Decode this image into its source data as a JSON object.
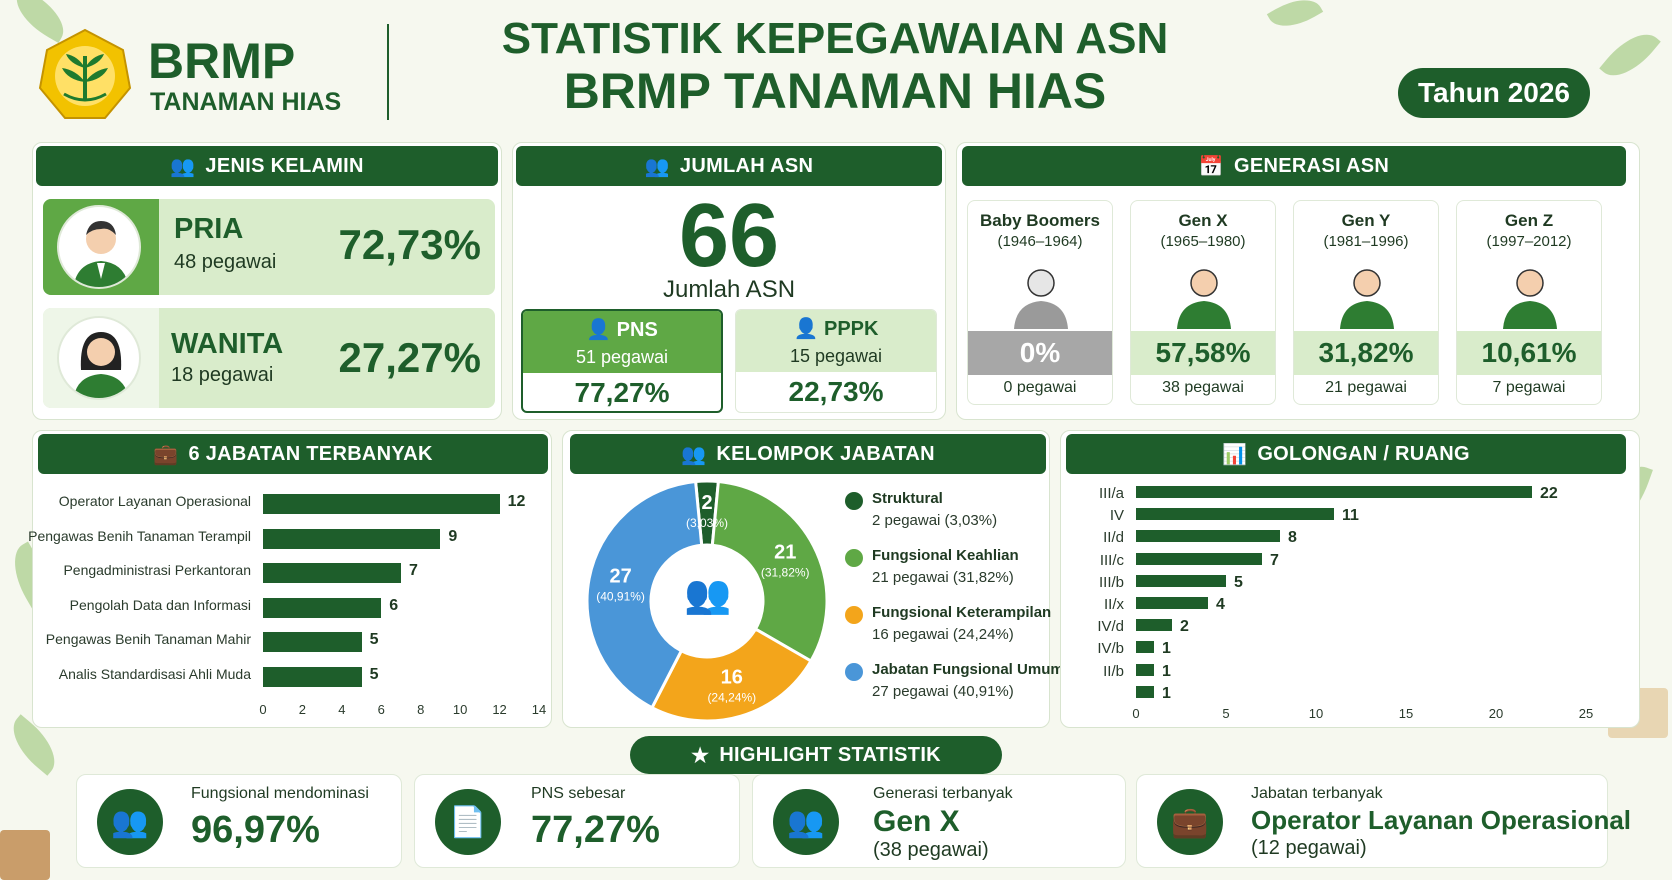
{
  "brand": {
    "logo_title": "BRMP",
    "logo_subtitle": "TANAMAN HIAS"
  },
  "header": {
    "title_line1": "STATISTIK KEPEGAWAIAN ASN",
    "title_line2": "BRMP TANAMAN HIAS",
    "year_badge": "Tahun 2026"
  },
  "colors": {
    "primary": "#1e5e2b",
    "light_green": "#d9eccb",
    "mid_green": "#5fa845",
    "orange": "#f3a51b",
    "blue": "#4a96d8",
    "grey": "#a7a7a7"
  },
  "gender": {
    "title": "JENIS KELAMIN",
    "icon": "people-icon",
    "items": [
      {
        "label": "PRIA",
        "count": "48 pegawai",
        "pct": "72,73%"
      },
      {
        "label": "WANITA",
        "count": "18 pegawai",
        "pct": "27,27%"
      }
    ]
  },
  "total": {
    "title": "JUMLAH ASN",
    "icon": "people-icon",
    "value": "66",
    "caption": "Jumlah ASN",
    "pns": {
      "label": "PNS",
      "count": "51 pegawai",
      "pct": "77,27%"
    },
    "pppk": {
      "label": "PPPK",
      "count": "15 pegawai",
      "pct": "22,73%"
    }
  },
  "generation": {
    "title": "GENERASI ASN",
    "icon": "calendar-icon",
    "items": [
      {
        "name": "Baby Boomers",
        "range": "(1946–1964)",
        "pct": "0%",
        "count": "0 pegawai"
      },
      {
        "name": "Gen X",
        "range": "(1965–1980)",
        "pct": "57,58%",
        "count": "38 pegawai"
      },
      {
        "name": "Gen Y",
        "range": "(1981–1996)",
        "pct": "31,82%",
        "count": "21 pegawai"
      },
      {
        "name": "Gen Z",
        "range": "(1997–2012)",
        "pct": "10,61%",
        "count": "7 pegawai"
      }
    ]
  },
  "jobs": {
    "title": "6 JABATAN TERBANYAK",
    "icon": "briefcase-icon"
  },
  "groups": {
    "title": "KELOMPOK JABATAN",
    "icon": "people-icon"
  },
  "ranks": {
    "title": "GOLONGAN / RUANG",
    "icon": "bar-chart-icon"
  },
  "chart_data": [
    {
      "type": "bar",
      "orientation": "horizontal",
      "categories": [
        "Operator Layanan Operasional",
        "Pengawas Benih Tanaman Terampil",
        "Pengadministrasi Perkantoran",
        "Pengolah Data dan Informasi",
        "Pengawas Benih Tanaman Mahir",
        "Analis Standardisasi Ahli Muda"
      ],
      "values": [
        12,
        9,
        7,
        6,
        5,
        5
      ],
      "xlim": [
        0,
        14
      ],
      "xticks": [
        "0",
        "2",
        "4",
        "6",
        "8",
        "10",
        "12",
        "14"
      ],
      "color": "#1e5e2b"
    },
    {
      "type": "pie",
      "donut": true,
      "slices": [
        {
          "name": "Struktural",
          "value": 2,
          "label": "2",
          "pct": "(3,03%)",
          "legend_detail": "2 pegawai (3,03%)",
          "color": "#1e5e2b"
        },
        {
          "name": "Fungsional Keahlian",
          "value": 21,
          "label": "21",
          "pct": "(31,82%)",
          "legend_detail": "21 pegawai (31,82%)",
          "color": "#5fa845"
        },
        {
          "name": "Fungsional Keterampilan",
          "value": 16,
          "label": "16",
          "pct": "(24,24%)",
          "legend_detail": "16 pegawai (24,24%)",
          "color": "#f3a51b"
        },
        {
          "name": "Jabatan Fungsional Umum",
          "value": 27,
          "label": "27",
          "pct": "(40,91%)",
          "legend_detail": "27 pegawai (40,91%)",
          "color": "#4a96d8"
        }
      ]
    },
    {
      "type": "bar",
      "orientation": "horizontal",
      "categories": [
        "III/a",
        "IV",
        "II/d",
        "III/c",
        "III/b",
        "II/x",
        "IV/d",
        "IV/b",
        "II/b",
        ""
      ],
      "values": [
        22,
        11,
        8,
        7,
        5,
        4,
        2,
        1,
        1,
        1
      ],
      "xlim": [
        0,
        25
      ],
      "xticks": [
        "0",
        "5",
        "10",
        "15",
        "20",
        "25"
      ],
      "color": "#1e5e2b"
    }
  ],
  "highlight": {
    "title": "HIGHLIGHT STATISTIK",
    "icon": "star-icon",
    "items": [
      {
        "caption": "Fungsional mendominasi",
        "value": "96,97%",
        "icon": "people-icon"
      },
      {
        "caption": "PNS sebesar",
        "value": "77,27%",
        "icon": "id-card-icon"
      },
      {
        "caption": "Generasi terbanyak",
        "value": "Gen X",
        "sub": "(38 pegawai)",
        "icon": "people-icon"
      },
      {
        "caption": "Jabatan terbanyak",
        "value": "Operator Layanan Operasional",
        "sub": "(12 pegawai)",
        "icon": "briefcase-icon"
      }
    ]
  }
}
